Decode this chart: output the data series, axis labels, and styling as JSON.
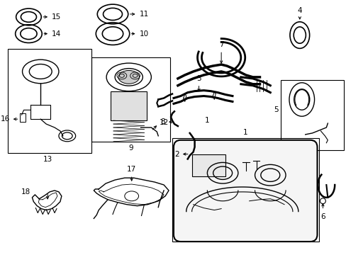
{
  "bg_color": "#ffffff",
  "line_color": "#000000",
  "fig_width": 4.89,
  "fig_height": 3.6,
  "dpi": 100,
  "font_size": 7.5
}
